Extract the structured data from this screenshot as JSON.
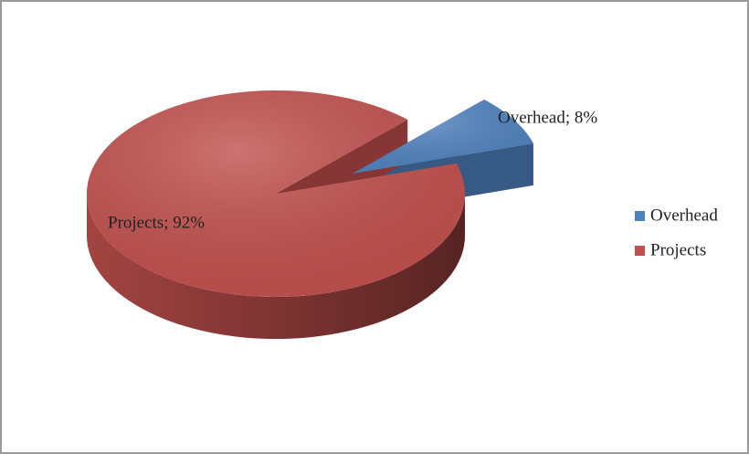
{
  "chart_data": {
    "type": "pie",
    "categories": [
      "Overhead",
      "Projects"
    ],
    "values": [
      8,
      92
    ],
    "value_labels": [
      "Overhead; 8%",
      "Projects; 92%"
    ],
    "colors": [
      "#4f81bd",
      "#c0504d"
    ],
    "legend": "right"
  }
}
